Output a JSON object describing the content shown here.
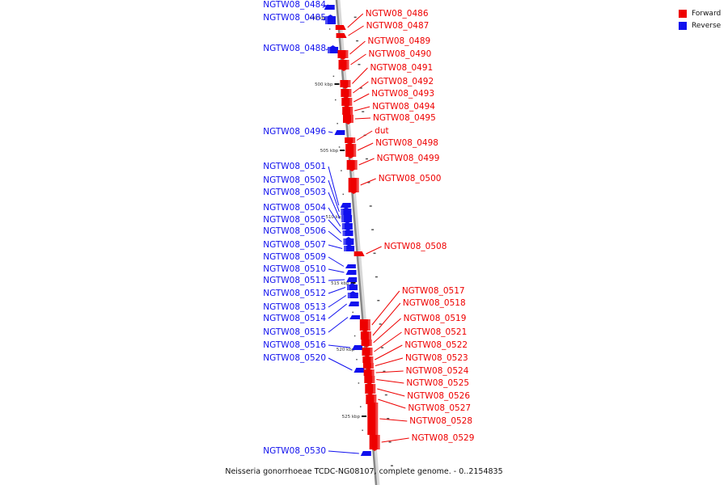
{
  "caption": "Neisseria gonorrhoeae TCDC-NG08107, complete genome. - 0..2154835",
  "legend": [
    {
      "label": "Forward",
      "color": "#ee0000"
    },
    {
      "label": "Reverse",
      "color": "#1111ee"
    }
  ],
  "colors": {
    "forward": "#ee0000",
    "reverse": "#1111ee",
    "axis": "#888888"
  },
  "kbp_marks": [
    {
      "label": "495 kbp",
      "kbp": 495
    },
    {
      "label": "500 kbp",
      "kbp": 500
    },
    {
      "label": "505 kbp",
      "kbp": 505
    },
    {
      "label": "510 kbp",
      "kbp": 510
    },
    {
      "label": "515 kbp",
      "kbp": 515
    },
    {
      "label": "520 kbp",
      "kbp": 520
    },
    {
      "label": "525 kbp",
      "kbp": 525
    }
  ],
  "genes": [
    {
      "name": "NGTW08_0484",
      "strand": "reverse"
    },
    {
      "name": "NGTW08_0485",
      "strand": "reverse"
    },
    {
      "name": "NGTW08_0486",
      "strand": "forward"
    },
    {
      "name": "NGTW08_0487",
      "strand": "forward"
    },
    {
      "name": "NGTW08_0488",
      "strand": "reverse"
    },
    {
      "name": "NGTW08_0489",
      "strand": "forward"
    },
    {
      "name": "NGTW08_0490",
      "strand": "forward"
    },
    {
      "name": "NGTW08_0491",
      "strand": "forward"
    },
    {
      "name": "NGTW08_0492",
      "strand": "forward"
    },
    {
      "name": "NGTW08_0493",
      "strand": "forward"
    },
    {
      "name": "NGTW08_0494",
      "strand": "forward"
    },
    {
      "name": "NGTW08_0495",
      "strand": "forward"
    },
    {
      "name": "NGTW08_0496",
      "strand": "reverse"
    },
    {
      "name": "dut",
      "strand": "forward"
    },
    {
      "name": "NGTW08_0498",
      "strand": "forward"
    },
    {
      "name": "NGTW08_0499",
      "strand": "forward"
    },
    {
      "name": "NGTW08_0500",
      "strand": "forward"
    },
    {
      "name": "NGTW08_0501",
      "strand": "reverse"
    },
    {
      "name": "NGTW08_0502",
      "strand": "reverse"
    },
    {
      "name": "NGTW08_0503",
      "strand": "reverse"
    },
    {
      "name": "NGTW08_0504",
      "strand": "reverse"
    },
    {
      "name": "NGTW08_0505",
      "strand": "reverse"
    },
    {
      "name": "NGTW08_0506",
      "strand": "reverse"
    },
    {
      "name": "NGTW08_0507",
      "strand": "reverse"
    },
    {
      "name": "NGTW08_0508",
      "strand": "forward"
    },
    {
      "name": "NGTW08_0509",
      "strand": "reverse"
    },
    {
      "name": "NGTW08_0510",
      "strand": "reverse"
    },
    {
      "name": "NGTW08_0511",
      "strand": "reverse"
    },
    {
      "name": "NGTW08_0512",
      "strand": "reverse"
    },
    {
      "name": "NGTW08_0513",
      "strand": "reverse"
    },
    {
      "name": "NGTW08_0514",
      "strand": "reverse"
    },
    {
      "name": "NGTW08_0515",
      "strand": "reverse"
    },
    {
      "name": "NGTW08_0516",
      "strand": "reverse"
    },
    {
      "name": "NGTW08_0517",
      "strand": "forward"
    },
    {
      "name": "NGTW08_0518",
      "strand": "forward"
    },
    {
      "name": "NGTW08_0519",
      "strand": "forward"
    },
    {
      "name": "NGTW08_0520",
      "strand": "reverse"
    },
    {
      "name": "NGTW08_0521",
      "strand": "forward"
    },
    {
      "name": "NGTW08_0522",
      "strand": "forward"
    },
    {
      "name": "NGTW08_0523",
      "strand": "forward"
    },
    {
      "name": "NGTW08_0524",
      "strand": "forward"
    },
    {
      "name": "NGTW08_0525",
      "strand": "forward"
    },
    {
      "name": "NGTW08_0526",
      "strand": "forward"
    },
    {
      "name": "NGTW08_0527",
      "strand": "forward"
    },
    {
      "name": "NGTW08_0528",
      "strand": "forward"
    },
    {
      "name": "NGTW08_0529",
      "strand": "forward"
    },
    {
      "name": "NGTW08_0530",
      "strand": "reverse"
    }
  ]
}
